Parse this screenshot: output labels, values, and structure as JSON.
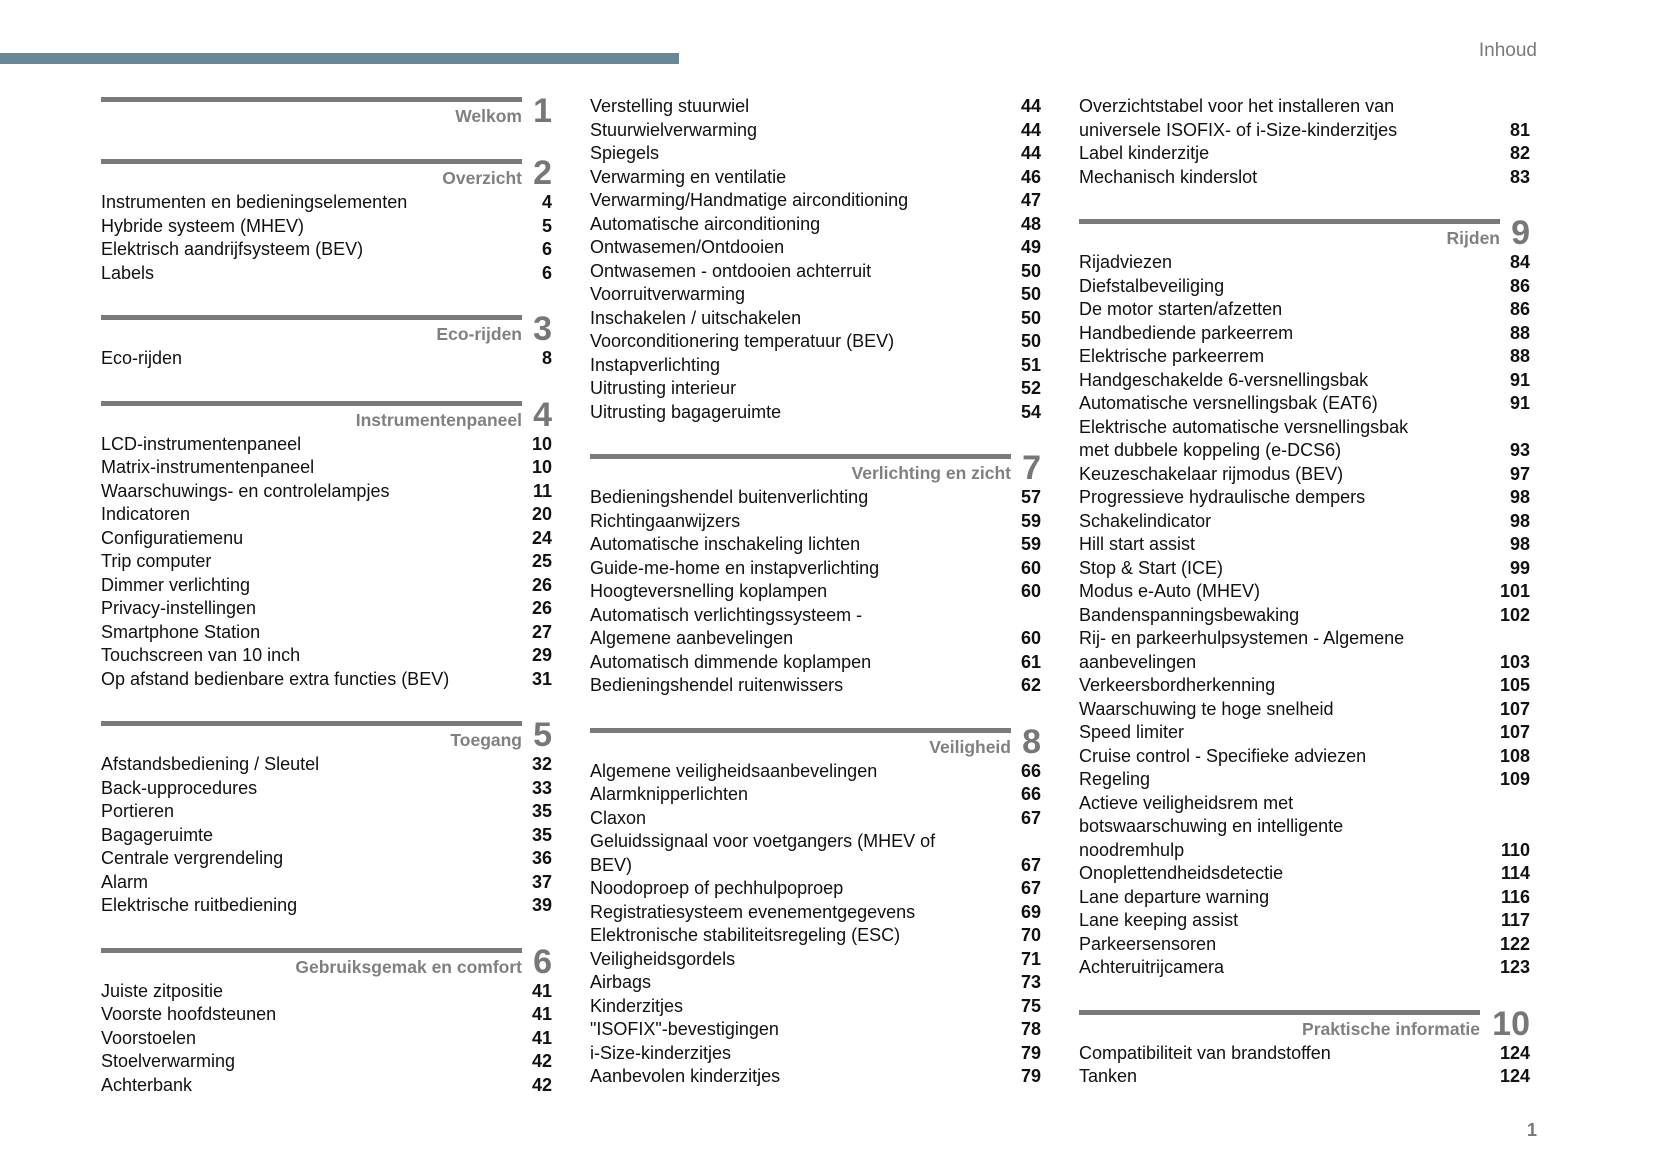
{
  "header": {
    "title": "Inhoud"
  },
  "page_number": "1",
  "colors": {
    "top_bar": "#6a8799",
    "section_rule": "#7a7a7a",
    "section_title": "#808080"
  },
  "columns": [
    [
      {
        "number": "1",
        "title": "Welkom",
        "entries": []
      },
      {
        "number": "2",
        "title": "Overzicht",
        "entries": [
          {
            "lines": [
              "Instrumenten en bedieningselementen"
            ],
            "page": "4"
          },
          {
            "lines": [
              "Hybride systeem (MHEV)"
            ],
            "page": "5"
          },
          {
            "lines": [
              "Elektrisch aandrijfsysteem (BEV)"
            ],
            "page": "6"
          },
          {
            "lines": [
              "Labels"
            ],
            "page": "6"
          }
        ]
      },
      {
        "number": "3",
        "title": "Eco-rijden",
        "entries": [
          {
            "lines": [
              "Eco-rijden"
            ],
            "page": "8"
          }
        ]
      },
      {
        "number": "4",
        "title": "Instrumentenpaneel",
        "entries": [
          {
            "lines": [
              "LCD-instrumentenpaneel"
            ],
            "page": "10"
          },
          {
            "lines": [
              "Matrix-instrumentenpaneel"
            ],
            "page": "10"
          },
          {
            "lines": [
              "Waarschuwings- en controlelampjes"
            ],
            "page": "11"
          },
          {
            "lines": [
              "Indicatoren"
            ],
            "page": "20"
          },
          {
            "lines": [
              "Configuratiemenu"
            ],
            "page": "24"
          },
          {
            "lines": [
              "Trip computer"
            ],
            "page": "25"
          },
          {
            "lines": [
              "Dimmer verlichting"
            ],
            "page": "26"
          },
          {
            "lines": [
              "Privacy-instellingen"
            ],
            "page": "26"
          },
          {
            "lines": [
              "Smartphone Station"
            ],
            "page": "27"
          },
          {
            "lines": [
              "Touchscreen van 10 inch"
            ],
            "page": "29"
          },
          {
            "lines": [
              "Op afstand bedienbare extra functies (BEV)"
            ],
            "page": "31"
          }
        ]
      },
      {
        "number": "5",
        "title": "Toegang",
        "entries": [
          {
            "lines": [
              "Afstandsbediening / Sleutel"
            ],
            "page": "32"
          },
          {
            "lines": [
              "Back-upprocedures"
            ],
            "page": "33"
          },
          {
            "lines": [
              "Portieren"
            ],
            "page": "35"
          },
          {
            "lines": [
              "Bagageruimte"
            ],
            "page": "35"
          },
          {
            "lines": [
              "Centrale vergrendeling"
            ],
            "page": "36"
          },
          {
            "lines": [
              "Alarm"
            ],
            "page": "37"
          },
          {
            "lines": [
              "Elektrische ruitbediening"
            ],
            "page": "39"
          }
        ]
      },
      {
        "number": "6",
        "title": "Gebruiksgemak en comfort",
        "entries": [
          {
            "lines": [
              "Juiste zitpositie"
            ],
            "page": "41"
          },
          {
            "lines": [
              "Voorste hoofdsteunen"
            ],
            "page": "41"
          },
          {
            "lines": [
              "Voorstoelen"
            ],
            "page": "41"
          },
          {
            "lines": [
              "Stoelverwarming"
            ],
            "page": "42"
          },
          {
            "lines": [
              "Achterbank"
            ],
            "page": "42"
          }
        ]
      }
    ],
    [
      {
        "number": "",
        "title": "",
        "entries": [
          {
            "lines": [
              "Verstelling stuurwiel"
            ],
            "page": "44"
          },
          {
            "lines": [
              "Stuurwielverwarming"
            ],
            "page": "44"
          },
          {
            "lines": [
              "Spiegels"
            ],
            "page": "44"
          },
          {
            "lines": [
              "Verwarming en ventilatie"
            ],
            "page": "46"
          },
          {
            "lines": [
              "Verwarming/Handmatige airconditioning"
            ],
            "page": "47"
          },
          {
            "lines": [
              "Automatische airconditioning"
            ],
            "page": "48"
          },
          {
            "lines": [
              "Ontwasemen/Ontdooien"
            ],
            "page": "49"
          },
          {
            "lines": [
              "Ontwasemen - ontdooien achterruit"
            ],
            "page": "50"
          },
          {
            "lines": [
              "Voorruitverwarming"
            ],
            "page": "50"
          },
          {
            "lines": [
              "Inschakelen / uitschakelen"
            ],
            "page": "50"
          },
          {
            "lines": [
              "Voorconditionering temperatuur (BEV)"
            ],
            "page": "50"
          },
          {
            "lines": [
              "Instapverlichting"
            ],
            "page": "51"
          },
          {
            "lines": [
              "Uitrusting interieur"
            ],
            "page": "52"
          },
          {
            "lines": [
              "Uitrusting bagageruimte"
            ],
            "page": "54"
          }
        ]
      },
      {
        "number": "7",
        "title": "Verlichting en zicht",
        "entries": [
          {
            "lines": [
              "Bedieningshendel buitenverlichting"
            ],
            "page": "57"
          },
          {
            "lines": [
              "Richtingaanwijzers"
            ],
            "page": "59"
          },
          {
            "lines": [
              "Automatische inschakeling lichten"
            ],
            "page": "59"
          },
          {
            "lines": [
              "Guide-me-home en instapverlichting"
            ],
            "page": "60"
          },
          {
            "lines": [
              "Hoogteversnelling koplampen"
            ],
            "page": "60"
          },
          {
            "lines": [
              "Automatisch verlichtingssysteem -",
              "Algemene aanbevelingen"
            ],
            "page": "60"
          },
          {
            "lines": [
              "Automatisch dimmende koplampen"
            ],
            "page": "61"
          },
          {
            "lines": [
              "Bedieningshendel ruitenwissers"
            ],
            "page": "62"
          }
        ]
      },
      {
        "number": "8",
        "title": "Veiligheid",
        "entries": [
          {
            "lines": [
              "Algemene veiligheidsaanbevelingen"
            ],
            "page": "66"
          },
          {
            "lines": [
              "Alarmknipperlichten"
            ],
            "page": "66"
          },
          {
            "lines": [
              "Claxon"
            ],
            "page": "67"
          },
          {
            "lines": [
              "Geluidssignaal voor voetgangers (MHEV of",
              "BEV)"
            ],
            "page": "67"
          },
          {
            "lines": [
              "Noodoproep of pechhulpoproep"
            ],
            "page": "67"
          },
          {
            "lines": [
              "Registratiesysteem evenementgegevens"
            ],
            "page": "69"
          },
          {
            "lines": [
              "Elektronische stabiliteitsregeling (ESC)"
            ],
            "page": "70"
          },
          {
            "lines": [
              "Veiligheidsgordels"
            ],
            "page": "71"
          },
          {
            "lines": [
              "Airbags"
            ],
            "page": "73"
          },
          {
            "lines": [
              "Kinderzitjes"
            ],
            "page": "75"
          },
          {
            "lines": [
              "\"ISOFIX\"-bevestigingen"
            ],
            "page": "78"
          },
          {
            "lines": [
              "i-Size-kinderzitjes"
            ],
            "page": "79"
          },
          {
            "lines": [
              "Aanbevolen kinderzitjes"
            ],
            "page": "79"
          }
        ]
      }
    ],
    [
      {
        "number": "",
        "title": "",
        "entries": [
          {
            "lines": [
              "Overzichtstabel voor het installeren van",
              "universele ISOFIX- of i-Size-kinderzitjes"
            ],
            "page": "81"
          },
          {
            "lines": [
              "Label kinderzitje"
            ],
            "page": "82"
          },
          {
            "lines": [
              "Mechanisch kinderslot"
            ],
            "page": "83"
          }
        ]
      },
      {
        "number": "9",
        "title": "Rijden",
        "entries": [
          {
            "lines": [
              "Rijadviezen"
            ],
            "page": "84"
          },
          {
            "lines": [
              "Diefstalbeveiliging"
            ],
            "page": "86"
          },
          {
            "lines": [
              "De motor starten/afzetten"
            ],
            "page": "86"
          },
          {
            "lines": [
              "Handbediende parkeerrem"
            ],
            "page": "88"
          },
          {
            "lines": [
              "Elektrische parkeerrem"
            ],
            "page": "88"
          },
          {
            "lines": [
              "Handgeschakelde 6-versnellingsbak"
            ],
            "page": "91"
          },
          {
            "lines": [
              "Automatische versnellingsbak (EAT6)"
            ],
            "page": "91"
          },
          {
            "lines": [
              "Elektrische automatische versnellingsbak",
              "met dubbele koppeling (e-DCS6)"
            ],
            "page": "93"
          },
          {
            "lines": [
              "Keuzeschakelaar rijmodus (BEV)"
            ],
            "page": "97"
          },
          {
            "lines": [
              "Progressieve hydraulische dempers"
            ],
            "page": "98"
          },
          {
            "lines": [
              "Schakelindicator"
            ],
            "page": "98"
          },
          {
            "lines": [
              "Hill start assist"
            ],
            "page": "98"
          },
          {
            "lines": [
              "Stop & Start (ICE)"
            ],
            "page": "99"
          },
          {
            "lines": [
              "Modus e-Auto (MHEV)"
            ],
            "page": "101"
          },
          {
            "lines": [
              "Bandenspanningsbewaking"
            ],
            "page": "102"
          },
          {
            "lines": [
              "Rij- en parkeerhulpsystemen - Algemene",
              "aanbevelingen"
            ],
            "page": "103"
          },
          {
            "lines": [
              "Verkeersbordherkenning"
            ],
            "page": "105"
          },
          {
            "lines": [
              "Waarschuwing te hoge snelheid"
            ],
            "page": "107"
          },
          {
            "lines": [
              "Speed limiter"
            ],
            "page": "107"
          },
          {
            "lines": [
              "Cruise control - Specifieke adviezen"
            ],
            "page": "108"
          },
          {
            "lines": [
              "Regeling"
            ],
            "page": "109"
          },
          {
            "lines": [
              "Actieve veiligheidsrem met",
              "botswaarschuwing en intelligente",
              "noodremhulp"
            ],
            "page": "110"
          },
          {
            "lines": [
              "Onoplettendheidsdetectie"
            ],
            "page": "114"
          },
          {
            "lines": [
              "Lane departure warning"
            ],
            "page": "116"
          },
          {
            "lines": [
              "Lane keeping assist"
            ],
            "page": "117"
          },
          {
            "lines": [
              "Parkeersensoren"
            ],
            "page": "122"
          },
          {
            "lines": [
              "Achteruitrijcamera"
            ],
            "page": "123"
          }
        ]
      },
      {
        "number": "10",
        "title": "Praktische informatie",
        "entries": [
          {
            "lines": [
              "Compatibiliteit van brandstoffen"
            ],
            "page": "124"
          },
          {
            "lines": [
              "Tanken"
            ],
            "page": "124"
          }
        ]
      }
    ]
  ]
}
